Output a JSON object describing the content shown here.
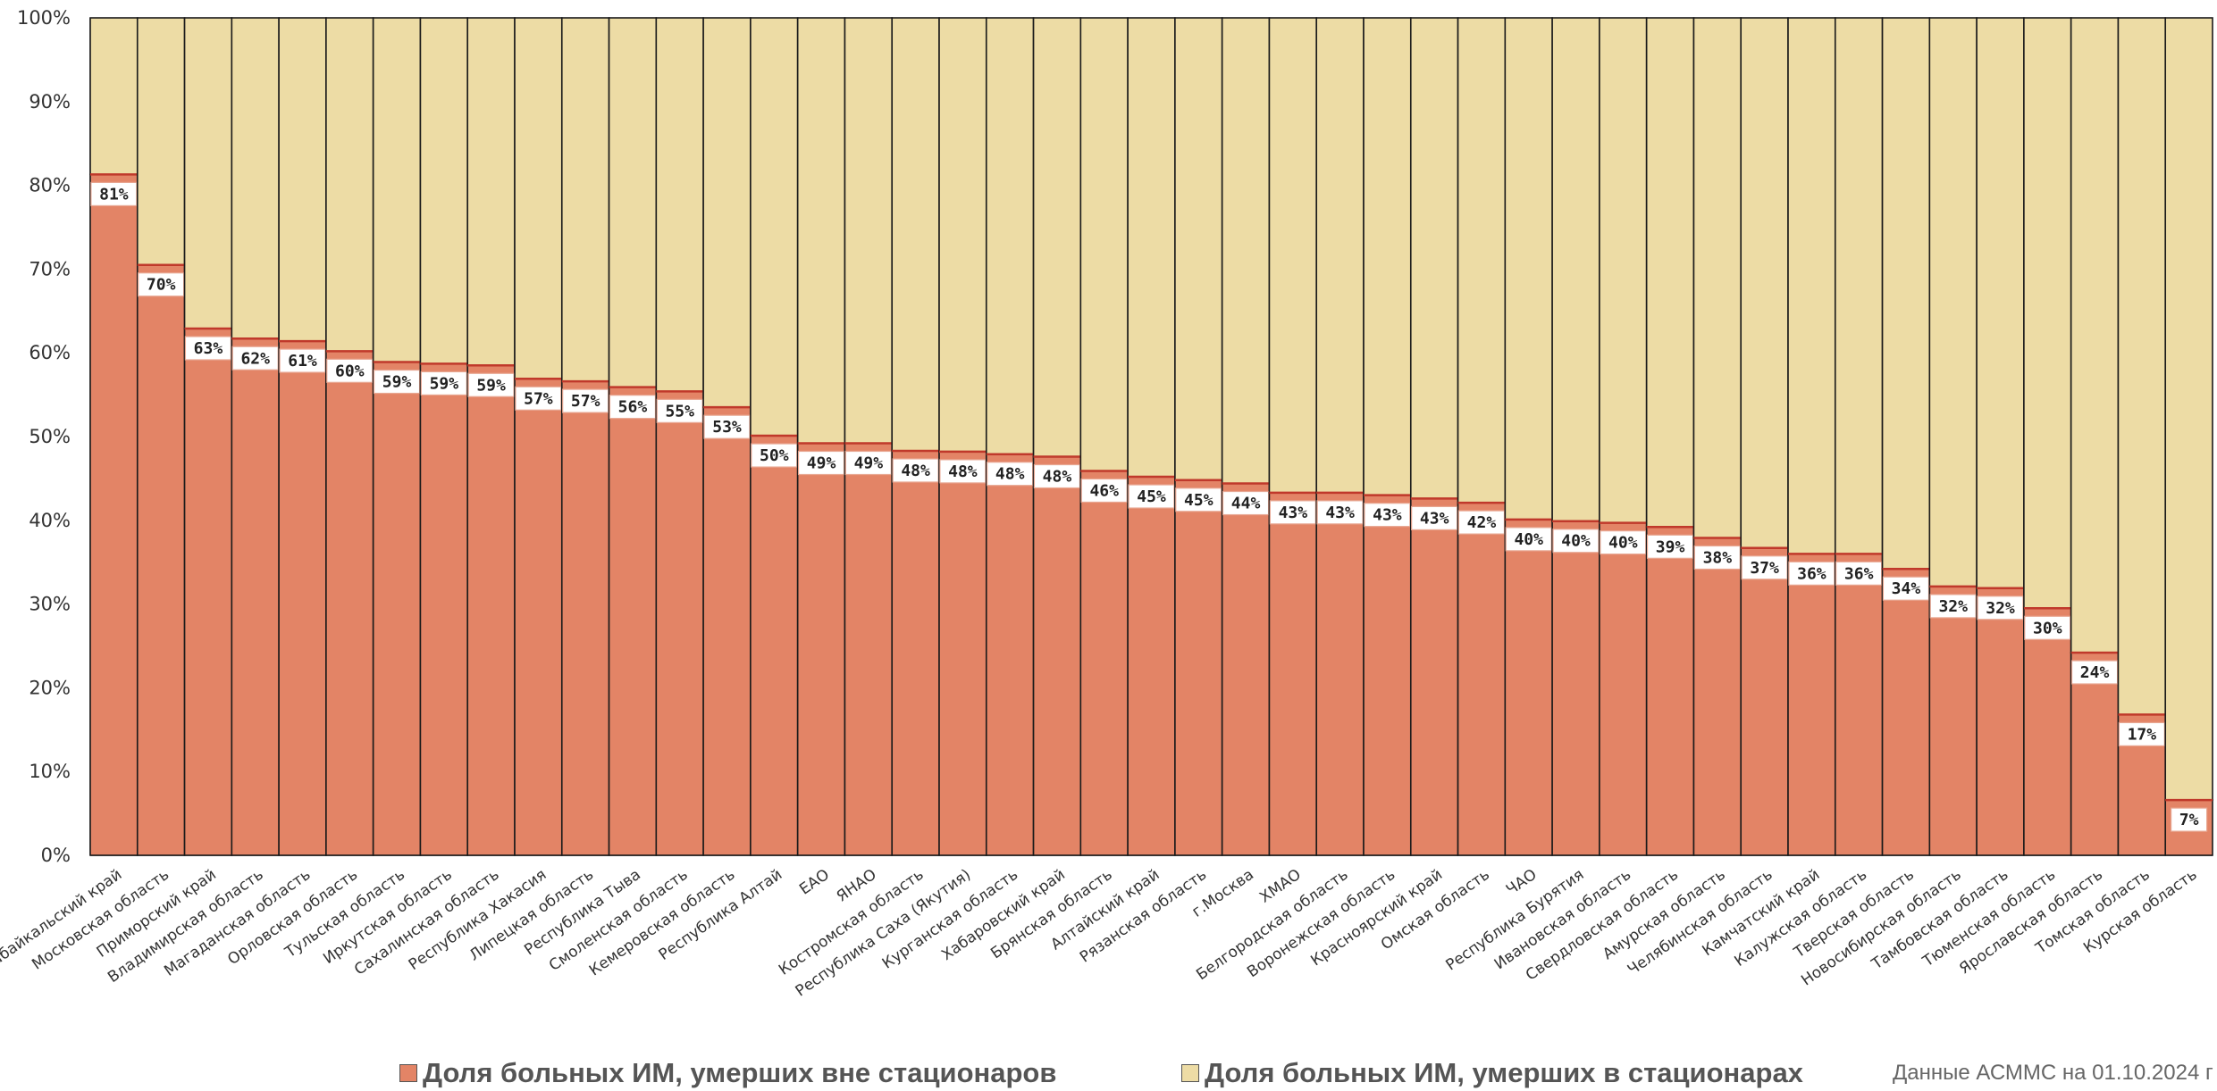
{
  "chart_data": {
    "type": "bar",
    "stacked_percent": true,
    "categories": [
      "Забайкальский край",
      "Московская область",
      "Приморский край",
      "Владимирская область",
      "Магаданская область",
      "Орловская область",
      "Тульская область",
      "Иркутская область",
      "Сахалинская область",
      "Республика Хакасия",
      "Липецкая область",
      "Республика Тыва",
      "Смоленская область",
      "Кемеровская область",
      "Республика Алтай",
      "ЕАО",
      "ЯНАО",
      "Костромская область",
      "Республика Саха (Якутия)",
      "Курганская область",
      "Хабаровский край",
      "Брянская область",
      "Алтайский край",
      "Рязанская область",
      "г.Москва",
      "ХМАО",
      "Белгородская область",
      "Воронежская область",
      "Красноярский край",
      "Омская область",
      "ЧАО",
      "Республика Бурятия",
      "Ивановская область",
      "Свердловская область",
      "Амурская область",
      "Челябинская область",
      "Камчатский край",
      "Калужская область",
      "Тверская область",
      "Новосибирская область",
      "Тамбовская область",
      "Тюменская область",
      "Ярославская область",
      "Томская область",
      "Курская область"
    ],
    "series": [
      {
        "name": "Доля больных ИМ, умерших вне стационаров",
        "color": "#E38466",
        "values": [
          81.3,
          70.5,
          62.9,
          61.7,
          61.4,
          60.2,
          58.9,
          58.7,
          58.5,
          56.9,
          56.6,
          55.9,
          55.4,
          53.5,
          50.1,
          49.2,
          49.2,
          48.3,
          48.2,
          47.9,
          47.6,
          45.9,
          45.2,
          44.8,
          44.4,
          43.3,
          43.3,
          43.0,
          42.6,
          42.1,
          40.1,
          39.9,
          39.7,
          39.2,
          37.9,
          36.7,
          36.0,
          36.0,
          34.2,
          32.1,
          31.9,
          29.5,
          24.2,
          16.8,
          6.6
        ],
        "labels": [
          "81%",
          "70%",
          "63%",
          "62%",
          "61%",
          "60%",
          "59%",
          "59%",
          "59%",
          "57%",
          "57%",
          "56%",
          "55%",
          "53%",
          "50%",
          "49%",
          "49%",
          "48%",
          "48%",
          "48%",
          "48%",
          "46%",
          "45%",
          "45%",
          "44%",
          "43%",
          "43%",
          "43%",
          "43%",
          "42%",
          "40%",
          "40%",
          "40%",
          "39%",
          "38%",
          "37%",
          "36%",
          "36%",
          "34%",
          "32%",
          "32%",
          "30%",
          "24%",
          "17%",
          "7%"
        ]
      },
      {
        "name": "Доля больных ИМ, умерших в стационарах",
        "color": "#EDDCA5",
        "values": [
          18.7,
          29.5,
          37.1,
          38.3,
          38.6,
          39.8,
          41.1,
          41.3,
          41.5,
          43.1,
          43.4,
          44.1,
          44.6,
          46.5,
          49.9,
          50.8,
          50.8,
          51.7,
          51.8,
          52.1,
          52.4,
          54.1,
          54.8,
          55.2,
          55.6,
          56.7,
          56.7,
          57.0,
          57.4,
          57.9,
          59.9,
          60.1,
          60.3,
          60.8,
          62.1,
          63.3,
          64.0,
          64.0,
          65.8,
          67.9,
          68.1,
          70.5,
          75.8,
          83.2,
          93.4
        ]
      }
    ],
    "y_ticks": [
      "0%",
      "10%",
      "20%",
      "30%",
      "40%",
      "50%",
      "60%",
      "70%",
      "80%",
      "90%",
      "100%"
    ],
    "ylim": [
      0,
      100
    ],
    "legend_position": "bottom"
  },
  "legend": {
    "item1": "Доля больных ИМ, умерших вне стационаров",
    "item2": "Доля больных ИМ, умерших в стационарах"
  },
  "note": "Данные АСММС на 01.10.2024 г"
}
